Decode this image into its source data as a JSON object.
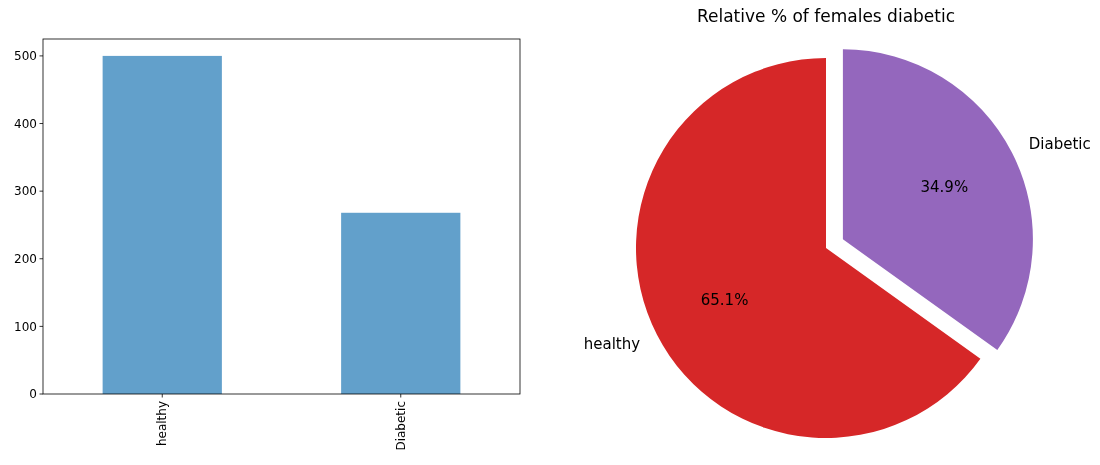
{
  "chart_data": [
    {
      "type": "bar",
      "categories": [
        "healthy",
        "Diabetic"
      ],
      "values": [
        500,
        268
      ],
      "color": "#62a0cb",
      "ylim": [
        0,
        525
      ],
      "yticks": [
        0,
        100,
        200,
        300,
        400,
        500
      ],
      "grid": false
    },
    {
      "type": "pie",
      "title": "Relative % of females diabetic",
      "categories": [
        "healthy",
        "Diabetic"
      ],
      "values": [
        65.1,
        34.9
      ],
      "colors": [
        "#d62728",
        "#9467bd"
      ],
      "value_labels": [
        "65.1%",
        "34.9%"
      ]
    }
  ]
}
